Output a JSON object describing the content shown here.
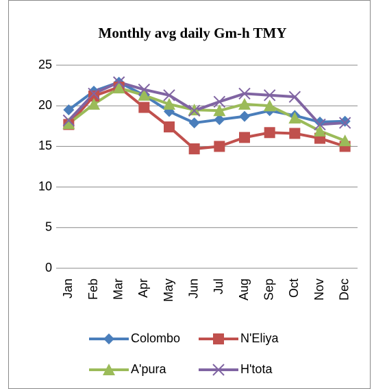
{
  "chart_data": {
    "type": "line",
    "title": "Monthly avg daily Gm-h TMY",
    "categories": [
      "Jan",
      "Feb",
      "Mar",
      "Apr",
      "May",
      "Jun",
      "Jul",
      "Aug",
      "Sep",
      "Oct",
      "Nov",
      "Dec"
    ],
    "series": [
      {
        "name": "Colombo",
        "color": "#4a7ebb",
        "marker": "diamond",
        "values": [
          19.5,
          21.8,
          22.9,
          21.3,
          19.3,
          17.9,
          18.3,
          18.7,
          19.4,
          18.8,
          18.0,
          18.1
        ]
      },
      {
        "name": "N'Eliya",
        "color": "#c0504d",
        "marker": "square",
        "values": [
          17.7,
          21.2,
          22.3,
          19.8,
          17.4,
          14.7,
          15.0,
          16.1,
          16.7,
          16.6,
          16.0,
          15.0
        ]
      },
      {
        "name": "A'pura",
        "color": "#9bbb59",
        "marker": "triangle",
        "values": [
          17.8,
          20.2,
          22.2,
          21.3,
          20.2,
          19.5,
          19.4,
          20.2,
          20.0,
          18.5,
          16.9,
          15.7
        ]
      },
      {
        "name": "H'tota",
        "color": "#8064a2",
        "marker": "x",
        "values": [
          18.2,
          21.5,
          22.9,
          22.0,
          21.3,
          19.4,
          20.5,
          21.5,
          21.3,
          21.1,
          17.7,
          17.9
        ]
      }
    ],
    "ylim": [
      0,
      25
    ],
    "yticks": [
      0,
      5,
      10,
      15,
      20,
      25
    ],
    "grid": true
  }
}
